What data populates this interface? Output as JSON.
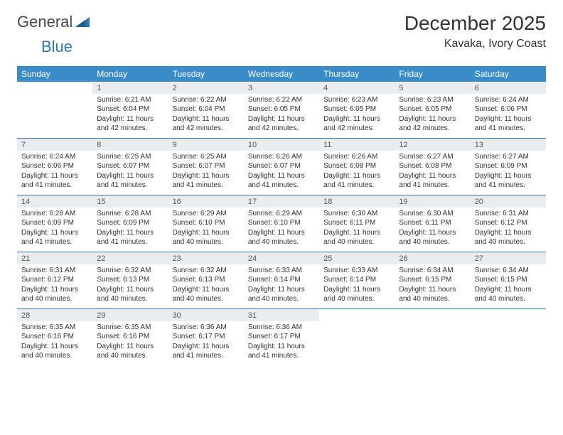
{
  "logo": {
    "general": "General",
    "blue": "Blue"
  },
  "title": "December 2025",
  "location": "Kavaka, Ivory Coast",
  "weekday_header_bg": "#3a8cc9",
  "rule_color": "#2f78b5",
  "daynum_bg": "#e9edef",
  "weekdays": [
    "Sunday",
    "Monday",
    "Tuesday",
    "Wednesday",
    "Thursday",
    "Friday",
    "Saturday"
  ],
  "weeks": [
    [
      {
        "num": "",
        "lines": []
      },
      {
        "num": "1",
        "lines": [
          "Sunrise: 6:21 AM",
          "Sunset: 6:04 PM",
          "Daylight: 11 hours",
          "and 42 minutes."
        ]
      },
      {
        "num": "2",
        "lines": [
          "Sunrise: 6:22 AM",
          "Sunset: 6:04 PM",
          "Daylight: 11 hours",
          "and 42 minutes."
        ]
      },
      {
        "num": "3",
        "lines": [
          "Sunrise: 6:22 AM",
          "Sunset: 6:05 PM",
          "Daylight: 11 hours",
          "and 42 minutes."
        ]
      },
      {
        "num": "4",
        "lines": [
          "Sunrise: 6:23 AM",
          "Sunset: 6:05 PM",
          "Daylight: 11 hours",
          "and 42 minutes."
        ]
      },
      {
        "num": "5",
        "lines": [
          "Sunrise: 6:23 AM",
          "Sunset: 6:05 PM",
          "Daylight: 11 hours",
          "and 42 minutes."
        ]
      },
      {
        "num": "6",
        "lines": [
          "Sunrise: 6:24 AM",
          "Sunset: 6:06 PM",
          "Daylight: 11 hours",
          "and 41 minutes."
        ]
      }
    ],
    [
      {
        "num": "7",
        "lines": [
          "Sunrise: 6:24 AM",
          "Sunset: 6:06 PM",
          "Daylight: 11 hours",
          "and 41 minutes."
        ]
      },
      {
        "num": "8",
        "lines": [
          "Sunrise: 6:25 AM",
          "Sunset: 6:07 PM",
          "Daylight: 11 hours",
          "and 41 minutes."
        ]
      },
      {
        "num": "9",
        "lines": [
          "Sunrise: 6:25 AM",
          "Sunset: 6:07 PM",
          "Daylight: 11 hours",
          "and 41 minutes."
        ]
      },
      {
        "num": "10",
        "lines": [
          "Sunrise: 6:26 AM",
          "Sunset: 6:07 PM",
          "Daylight: 11 hours",
          "and 41 minutes."
        ]
      },
      {
        "num": "11",
        "lines": [
          "Sunrise: 6:26 AM",
          "Sunset: 6:08 PM",
          "Daylight: 11 hours",
          "and 41 minutes."
        ]
      },
      {
        "num": "12",
        "lines": [
          "Sunrise: 6:27 AM",
          "Sunset: 6:08 PM",
          "Daylight: 11 hours",
          "and 41 minutes."
        ]
      },
      {
        "num": "13",
        "lines": [
          "Sunrise: 6:27 AM",
          "Sunset: 6:09 PM",
          "Daylight: 11 hours",
          "and 41 minutes."
        ]
      }
    ],
    [
      {
        "num": "14",
        "lines": [
          "Sunrise: 6:28 AM",
          "Sunset: 6:09 PM",
          "Daylight: 11 hours",
          "and 41 minutes."
        ]
      },
      {
        "num": "15",
        "lines": [
          "Sunrise: 6:28 AM",
          "Sunset: 6:09 PM",
          "Daylight: 11 hours",
          "and 41 minutes."
        ]
      },
      {
        "num": "16",
        "lines": [
          "Sunrise: 6:29 AM",
          "Sunset: 6:10 PM",
          "Daylight: 11 hours",
          "and 40 minutes."
        ]
      },
      {
        "num": "17",
        "lines": [
          "Sunrise: 6:29 AM",
          "Sunset: 6:10 PM",
          "Daylight: 11 hours",
          "and 40 minutes."
        ]
      },
      {
        "num": "18",
        "lines": [
          "Sunrise: 6:30 AM",
          "Sunset: 6:11 PM",
          "Daylight: 11 hours",
          "and 40 minutes."
        ]
      },
      {
        "num": "19",
        "lines": [
          "Sunrise: 6:30 AM",
          "Sunset: 6:11 PM",
          "Daylight: 11 hours",
          "and 40 minutes."
        ]
      },
      {
        "num": "20",
        "lines": [
          "Sunrise: 6:31 AM",
          "Sunset: 6:12 PM",
          "Daylight: 11 hours",
          "and 40 minutes."
        ]
      }
    ],
    [
      {
        "num": "21",
        "lines": [
          "Sunrise: 6:31 AM",
          "Sunset: 6:12 PM",
          "Daylight: 11 hours",
          "and 40 minutes."
        ]
      },
      {
        "num": "22",
        "lines": [
          "Sunrise: 6:32 AM",
          "Sunset: 6:13 PM",
          "Daylight: 11 hours",
          "and 40 minutes."
        ]
      },
      {
        "num": "23",
        "lines": [
          "Sunrise: 6:32 AM",
          "Sunset: 6:13 PM",
          "Daylight: 11 hours",
          "and 40 minutes."
        ]
      },
      {
        "num": "24",
        "lines": [
          "Sunrise: 6:33 AM",
          "Sunset: 6:14 PM",
          "Daylight: 11 hours",
          "and 40 minutes."
        ]
      },
      {
        "num": "25",
        "lines": [
          "Sunrise: 6:33 AM",
          "Sunset: 6:14 PM",
          "Daylight: 11 hours",
          "and 40 minutes."
        ]
      },
      {
        "num": "26",
        "lines": [
          "Sunrise: 6:34 AM",
          "Sunset: 6:15 PM",
          "Daylight: 11 hours",
          "and 40 minutes."
        ]
      },
      {
        "num": "27",
        "lines": [
          "Sunrise: 6:34 AM",
          "Sunset: 6:15 PM",
          "Daylight: 11 hours",
          "and 40 minutes."
        ]
      }
    ],
    [
      {
        "num": "28",
        "lines": [
          "Sunrise: 6:35 AM",
          "Sunset: 6:16 PM",
          "Daylight: 11 hours",
          "and 40 minutes."
        ]
      },
      {
        "num": "29",
        "lines": [
          "Sunrise: 6:35 AM",
          "Sunset: 6:16 PM",
          "Daylight: 11 hours",
          "and 40 minutes."
        ]
      },
      {
        "num": "30",
        "lines": [
          "Sunrise: 6:36 AM",
          "Sunset: 6:17 PM",
          "Daylight: 11 hours",
          "and 41 minutes."
        ]
      },
      {
        "num": "31",
        "lines": [
          "Sunrise: 6:36 AM",
          "Sunset: 6:17 PM",
          "Daylight: 11 hours",
          "and 41 minutes."
        ]
      },
      {
        "num": "",
        "lines": []
      },
      {
        "num": "",
        "lines": []
      },
      {
        "num": "",
        "lines": []
      }
    ]
  ]
}
